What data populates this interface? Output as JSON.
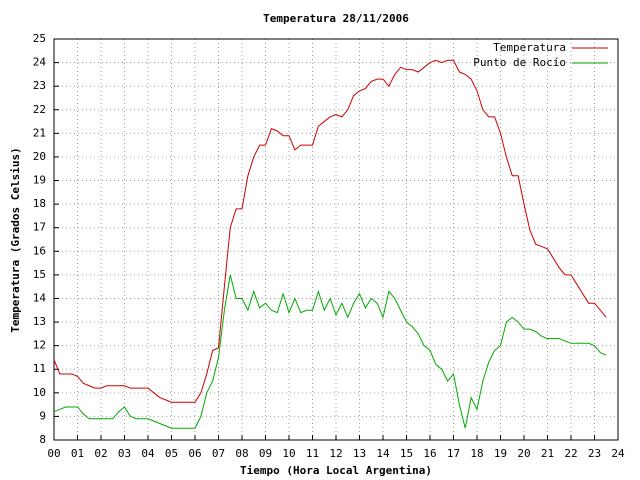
{
  "chart_data": {
    "type": "line",
    "title": "Temperatura 28/11/2006",
    "xlabel": "Tiempo (Hora Local Argentina)",
    "ylabel": "Temperatura (Grados Celsius)",
    "xlim": [
      0,
      24
    ],
    "ylim": [
      8,
      25
    ],
    "xticks": [
      {
        "value": 0,
        "label": "00"
      },
      {
        "value": 1,
        "label": "01"
      },
      {
        "value": 2,
        "label": "02"
      },
      {
        "value": 3,
        "label": "03"
      },
      {
        "value": 4,
        "label": "04"
      },
      {
        "value": 5,
        "label": "05"
      },
      {
        "value": 6,
        "label": "06"
      },
      {
        "value": 7,
        "label": "07"
      },
      {
        "value": 8,
        "label": "08"
      },
      {
        "value": 9,
        "label": "09"
      },
      {
        "value": 10,
        "label": "10"
      },
      {
        "value": 11,
        "label": "11"
      },
      {
        "value": 12,
        "label": "12"
      },
      {
        "value": 13,
        "label": "13"
      },
      {
        "value": 14,
        "label": "14"
      },
      {
        "value": 15,
        "label": "15"
      },
      {
        "value": 16,
        "label": "16"
      },
      {
        "value": 17,
        "label": "17"
      },
      {
        "value": 18,
        "label": "18"
      },
      {
        "value": 19,
        "label": "19"
      },
      {
        "value": 20,
        "label": "20"
      },
      {
        "value": 21,
        "label": "21"
      },
      {
        "value": 22,
        "label": "22"
      },
      {
        "value": 23,
        "label": "23"
      },
      {
        "value": 24,
        "label": "24"
      }
    ],
    "yticks": [
      8,
      9,
      10,
      11,
      12,
      13,
      14,
      15,
      16,
      17,
      18,
      19,
      20,
      21,
      22,
      23,
      24,
      25
    ],
    "grid": true,
    "legend": "top-right",
    "x": [
      0,
      0.25,
      0.5,
      0.75,
      1,
      1.25,
      1.5,
      1.75,
      2,
      2.25,
      2.5,
      2.75,
      3,
      3.25,
      3.5,
      3.75,
      4,
      4.25,
      4.5,
      4.75,
      5,
      5.25,
      5.5,
      5.75,
      6,
      6.25,
      6.5,
      6.75,
      7,
      7.25,
      7.5,
      7.75,
      8,
      8.25,
      8.5,
      8.75,
      9,
      9.25,
      9.5,
      9.75,
      10,
      10.25,
      10.5,
      10.75,
      11,
      11.25,
      11.5,
      11.75,
      12,
      12.25,
      12.5,
      12.75,
      13,
      13.25,
      13.5,
      13.75,
      14,
      14.25,
      14.5,
      14.75,
      15,
      15.25,
      15.5,
      15.75,
      16,
      16.25,
      16.5,
      16.75,
      17,
      17.25,
      17.5,
      17.75,
      18,
      18.25,
      18.5,
      18.75,
      19,
      19.25,
      19.5,
      19.75,
      20,
      20.25,
      20.5,
      20.75,
      21,
      21.25,
      21.5,
      21.75,
      22,
      22.25,
      22.5,
      22.75,
      23,
      23.25,
      23.5
    ],
    "series": [
      {
        "name": "Temperatura",
        "color": "#cc0000",
        "values": [
          11.4,
          10.8,
          10.8,
          10.8,
          10.7,
          10.4,
          10.3,
          10.2,
          10.2,
          10.3,
          10.3,
          10.3,
          10.3,
          10.2,
          10.2,
          10.2,
          10.2,
          10.0,
          9.8,
          9.7,
          9.6,
          9.6,
          9.6,
          9.6,
          9.6,
          10.0,
          10.8,
          11.8,
          11.9,
          14.5,
          17.0,
          17.8,
          17.8,
          19.2,
          20.0,
          20.5,
          20.5,
          21.2,
          21.1,
          20.9,
          20.9,
          20.3,
          20.5,
          20.5,
          20.5,
          21.3,
          21.5,
          21.7,
          21.8,
          21.7,
          22.0,
          22.6,
          22.8,
          22.9,
          23.2,
          23.3,
          23.3,
          23.0,
          23.5,
          23.8,
          23.7,
          23.7,
          23.6,
          23.8,
          24.0,
          24.1,
          24.0,
          24.1,
          24.1,
          23.6,
          23.5,
          23.3,
          22.8,
          22.0,
          21.7,
          21.7,
          21.0,
          20.0,
          19.2,
          19.2,
          18.0,
          16.9,
          16.3,
          16.2,
          16.1,
          15.7,
          15.3,
          15.0,
          15.0,
          14.6,
          14.2,
          13.8,
          13.8,
          13.5,
          13.2
        ]
      },
      {
        "name": "Punto de Rocío",
        "color": "#00aa00",
        "values": [
          9.2,
          9.3,
          9.4,
          9.4,
          9.4,
          9.1,
          8.9,
          8.9,
          8.9,
          8.9,
          8.9,
          9.2,
          9.4,
          9.0,
          8.9,
          8.9,
          8.9,
          8.8,
          8.7,
          8.6,
          8.5,
          8.5,
          8.5,
          8.5,
          8.5,
          9.0,
          10.0,
          10.5,
          11.5,
          13.5,
          15.0,
          14.0,
          14.0,
          13.5,
          14.3,
          13.6,
          13.8,
          13.5,
          13.4,
          14.2,
          13.4,
          14.0,
          13.4,
          13.5,
          13.5,
          14.3,
          13.5,
          14.0,
          13.3,
          13.8,
          13.2,
          13.8,
          14.2,
          13.6,
          14.0,
          13.8,
          13.2,
          14.3,
          14.0,
          13.5,
          13.0,
          12.8,
          12.5,
          12.0,
          11.8,
          11.2,
          11.0,
          10.5,
          10.8,
          9.5,
          8.5,
          9.8,
          9.3,
          10.5,
          11.3,
          11.8,
          12.0,
          13.0,
          13.2,
          13.0,
          12.7,
          12.7,
          12.6,
          12.4,
          12.3,
          12.3,
          12.3,
          12.2,
          12.1,
          12.1,
          12.1,
          12.1,
          12.0,
          11.7,
          11.6
        ]
      }
    ]
  }
}
